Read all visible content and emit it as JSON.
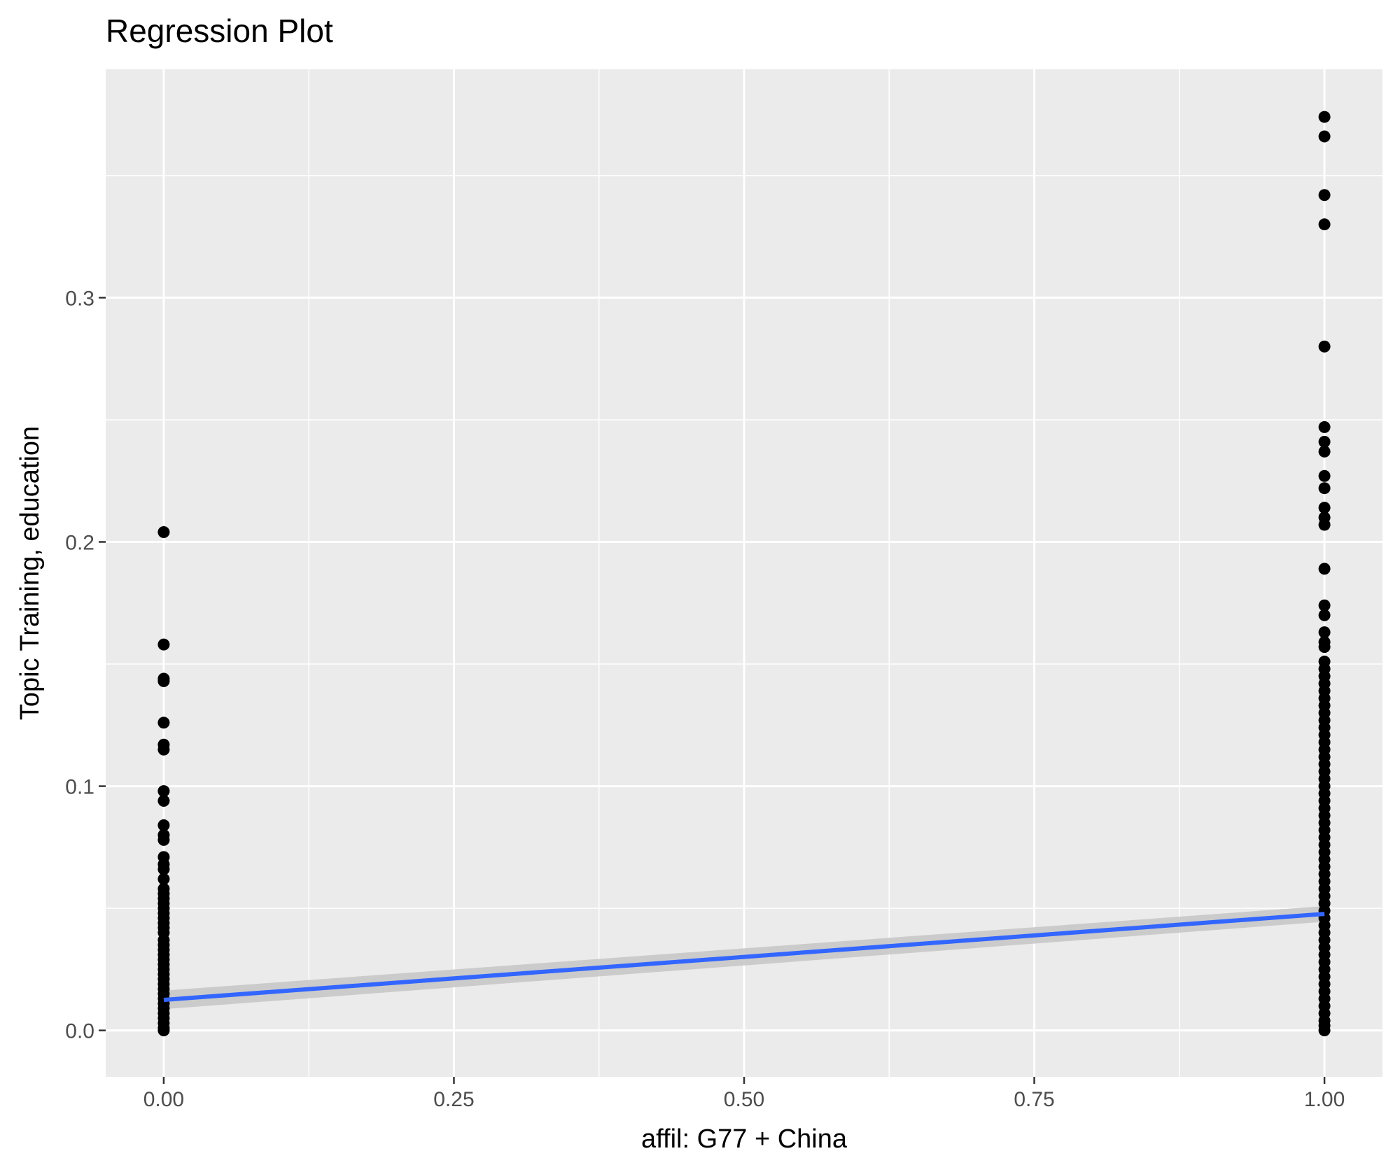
{
  "chart_data": {
    "type": "scatter",
    "title": "Regression Plot",
    "xlabel": "affil: G77 + China",
    "ylabel": "Topic Training, education",
    "xlim": [
      -0.05,
      1.05
    ],
    "ylim": [
      -0.019,
      0.3935
    ],
    "x_ticks": [
      0,
      0.25,
      0.5,
      0.75,
      1
    ],
    "x_tick_labels": [
      "0.00",
      "0.25",
      "0.50",
      "0.75",
      "1.00"
    ],
    "y_ticks": [
      0,
      0.1,
      0.2,
      0.3
    ],
    "y_tick_labels": [
      "0.0",
      "0.1",
      "0.2",
      "0.3"
    ],
    "x_minor_ticks": [
      0.125,
      0.375,
      0.625,
      0.875
    ],
    "y_minor_ticks": [
      0.05,
      0.15,
      0.25,
      0.35
    ],
    "grid": true,
    "series": [
      {
        "type": "points",
        "points": [
          [
            0,
            0.204
          ],
          [
            0,
            0.158
          ],
          [
            0,
            0.144
          ],
          [
            0,
            0.143
          ],
          [
            0,
            0.126
          ],
          [
            0,
            0.117
          ],
          [
            0,
            0.115
          ],
          [
            0,
            0.098
          ],
          [
            0,
            0.094
          ],
          [
            0,
            0.084
          ],
          [
            0,
            0.08
          ],
          [
            0,
            0.078
          ],
          [
            0,
            0.071
          ],
          [
            0,
            0.068
          ],
          [
            0,
            0.066
          ],
          [
            0,
            0.062
          ],
          [
            0,
            0.058
          ],
          [
            0,
            0.056
          ],
          [
            0,
            0.054
          ],
          [
            0,
            0.052
          ],
          [
            0,
            0.05
          ],
          [
            0,
            0.048
          ],
          [
            0,
            0.046
          ],
          [
            0,
            0.044
          ],
          [
            0,
            0.042
          ],
          [
            0,
            0.04
          ],
          [
            0,
            0.037
          ],
          [
            0,
            0.035
          ],
          [
            0,
            0.033
          ],
          [
            0,
            0.031
          ],
          [
            0,
            0.029
          ],
          [
            0,
            0.027
          ],
          [
            0,
            0.025
          ],
          [
            0,
            0.023
          ],
          [
            0,
            0.021
          ],
          [
            0,
            0.019
          ],
          [
            0,
            0.017
          ],
          [
            0,
            0.015
          ],
          [
            0,
            0.013
          ],
          [
            0,
            0.011
          ],
          [
            0,
            0.009
          ],
          [
            0,
            0.007
          ],
          [
            0,
            0.005
          ],
          [
            0,
            0.003
          ],
          [
            0,
            0.001
          ],
          [
            0,
            0.0
          ],
          [
            1,
            0.374
          ],
          [
            1,
            0.366
          ],
          [
            1,
            0.342
          ],
          [
            1,
            0.33
          ],
          [
            1,
            0.28
          ],
          [
            1,
            0.247
          ],
          [
            1,
            0.241
          ],
          [
            1,
            0.237
          ],
          [
            1,
            0.227
          ],
          [
            1,
            0.222
          ],
          [
            1,
            0.214
          ],
          [
            1,
            0.21
          ],
          [
            1,
            0.207
          ],
          [
            1,
            0.189
          ],
          [
            1,
            0.174
          ],
          [
            1,
            0.17
          ],
          [
            1,
            0.163
          ],
          [
            1,
            0.159
          ],
          [
            1,
            0.157
          ],
          [
            1,
            0.151
          ],
          [
            1,
            0.148
          ],
          [
            1,
            0.145
          ],
          [
            1,
            0.142
          ],
          [
            1,
            0.139
          ],
          [
            1,
            0.136
          ],
          [
            1,
            0.133
          ],
          [
            1,
            0.13
          ],
          [
            1,
            0.127
          ],
          [
            1,
            0.124
          ],
          [
            1,
            0.121
          ],
          [
            1,
            0.118
          ],
          [
            1,
            0.115
          ],
          [
            1,
            0.112
          ],
          [
            1,
            0.109
          ],
          [
            1,
            0.106
          ],
          [
            1,
            0.103
          ],
          [
            1,
            0.1
          ],
          [
            1,
            0.097
          ],
          [
            1,
            0.094
          ],
          [
            1,
            0.091
          ],
          [
            1,
            0.088
          ],
          [
            1,
            0.085
          ],
          [
            1,
            0.082
          ],
          [
            1,
            0.079
          ],
          [
            1,
            0.076
          ],
          [
            1,
            0.073
          ],
          [
            1,
            0.07
          ],
          [
            1,
            0.067
          ],
          [
            1,
            0.064
          ],
          [
            1,
            0.061
          ],
          [
            1,
            0.058
          ],
          [
            1,
            0.055
          ],
          [
            1,
            0.052
          ],
          [
            1,
            0.049
          ],
          [
            1,
            0.046
          ],
          [
            1,
            0.043
          ],
          [
            1,
            0.04
          ],
          [
            1,
            0.037
          ],
          [
            1,
            0.034
          ],
          [
            1,
            0.031
          ],
          [
            1,
            0.028
          ],
          [
            1,
            0.025
          ],
          [
            1,
            0.022
          ],
          [
            1,
            0.019
          ],
          [
            1,
            0.016
          ],
          [
            1,
            0.013
          ],
          [
            1,
            0.01
          ],
          [
            1,
            0.007
          ],
          [
            1,
            0.004
          ],
          [
            1,
            0.002
          ],
          [
            1,
            0.0
          ]
        ],
        "color": "#000000"
      },
      {
        "type": "line",
        "x": [
          0,
          1
        ],
        "y": [
          0.0125,
          0.0477
        ],
        "color": "#3366ff",
        "confidence_band": {
          "lower": [
            0.0087,
            0.0445
          ],
          "upper": [
            0.0163,
            0.0509
          ],
          "color": "#c8c8c8"
        }
      }
    ],
    "colors": {
      "panel_background": "#ebebeb",
      "grid": "#ffffff",
      "tick": "#333333",
      "tick_label": "#4d4d4d"
    }
  }
}
